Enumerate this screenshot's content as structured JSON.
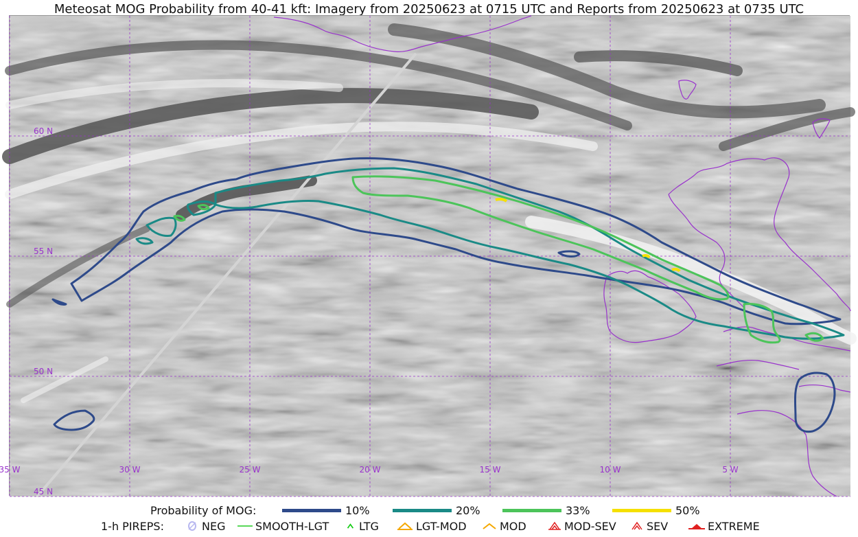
{
  "title": "Meteosat MOG Probability from 40-41 kft: Imagery from 20250623 at 0715 UTC and Reports from 20250623 at 0735 UTC",
  "map": {
    "lat_labels": [
      "60 N",
      "55 N",
      "50 N",
      "45 N"
    ],
    "lon_labels": [
      "35 W",
      "30 W",
      "25 W",
      "20 W",
      "15 W",
      "10 W",
      "5 W"
    ],
    "grid_color": "#9933cc",
    "coast_color": "#9933cc"
  },
  "legend": {
    "probability_label": "Probability of MOG:",
    "probability": [
      {
        "label": "10%",
        "color": "#2e4a8a"
      },
      {
        "label": "20%",
        "color": "#1a8a86"
      },
      {
        "label": "33%",
        "color": "#4cc45a"
      },
      {
        "label": "50%",
        "color": "#f5e000"
      }
    ],
    "pireps_label": "1-h PIREPS:",
    "pireps": [
      {
        "label": "NEG",
        "icon": "neg-icon",
        "color": "#b8b8f0"
      },
      {
        "label": "SMOOTH-LGT",
        "icon": "smooth-lgt-icon",
        "color": "#22cc22"
      },
      {
        "label": "LTG",
        "icon": "ltg-icon",
        "color": "#11cc11"
      },
      {
        "label": "LGT-MOD",
        "icon": "lgt-mod-icon",
        "color": "#f5a800"
      },
      {
        "label": "MOD",
        "icon": "mod-icon",
        "color": "#f5a800"
      },
      {
        "label": "MOD-SEV",
        "icon": "mod-sev-icon",
        "color": "#e02020"
      },
      {
        "label": "SEV",
        "icon": "sev-icon",
        "color": "#e02020"
      },
      {
        "label": "EXTREME",
        "icon": "extreme-icon",
        "color": "#e02020"
      }
    ]
  }
}
